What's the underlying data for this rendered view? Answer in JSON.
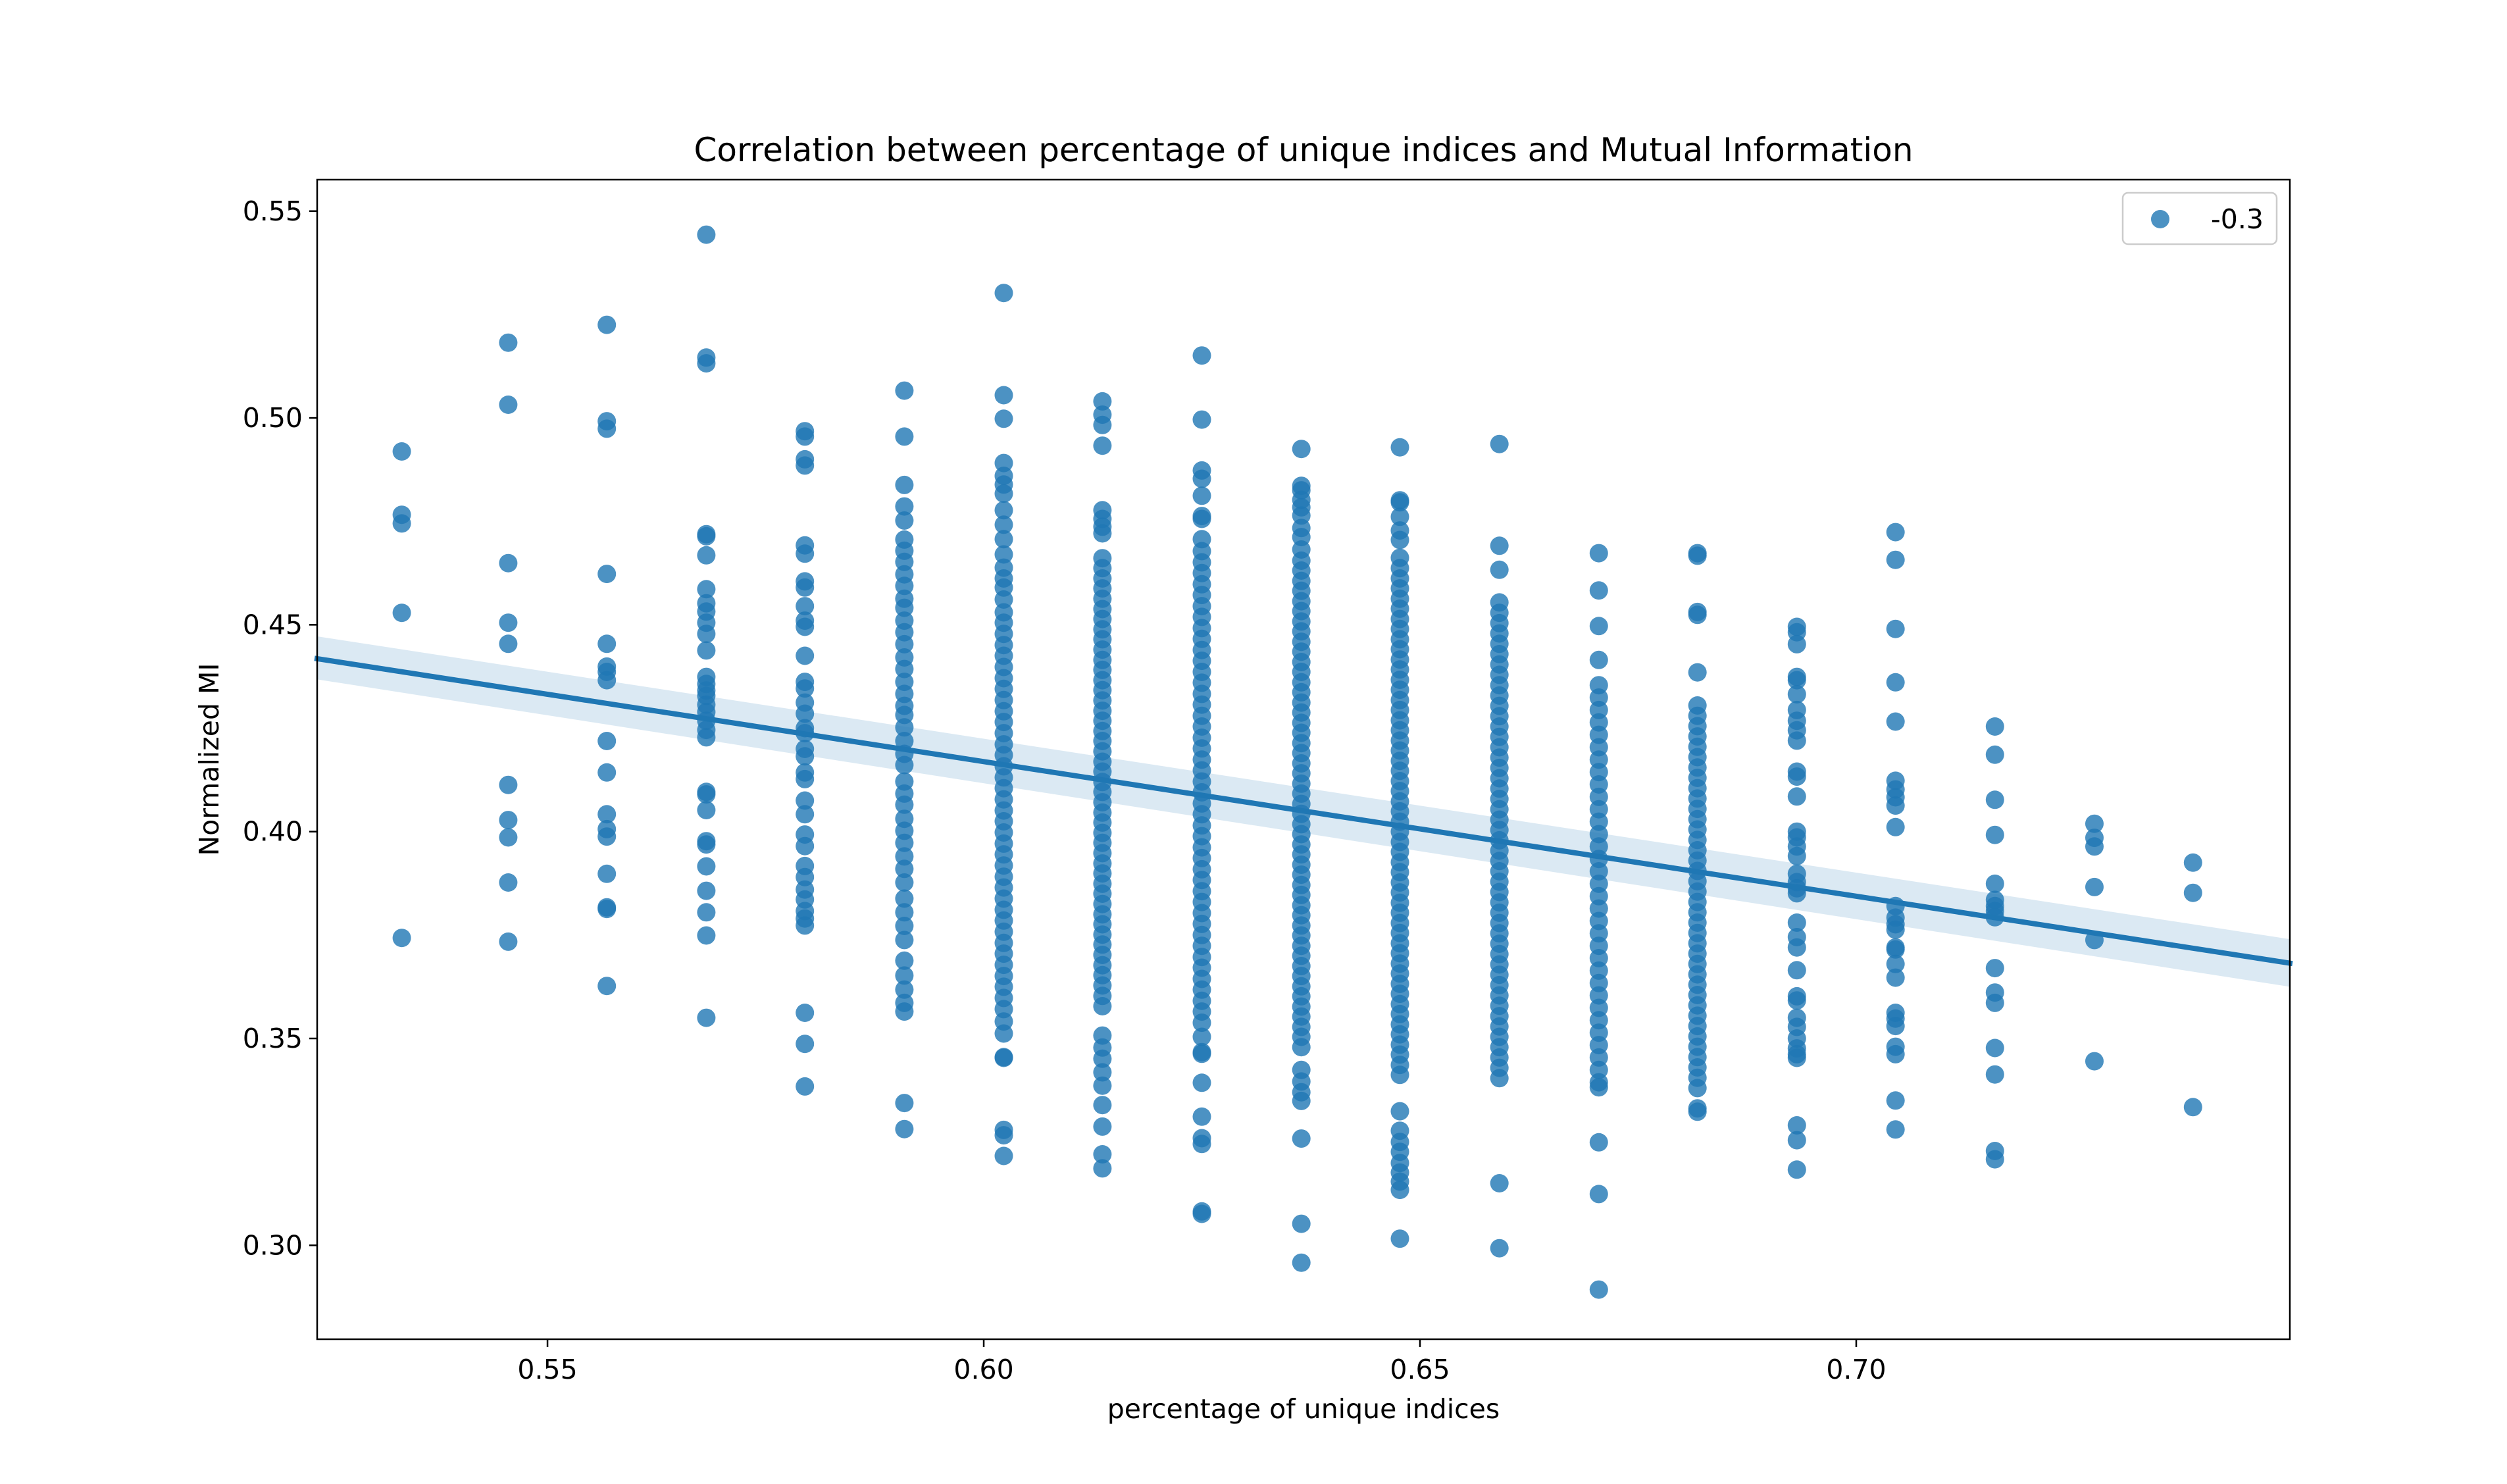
{
  "chart_data": {
    "type": "scatter",
    "title": "Correlation between percentage of unique indices and Mutual Information",
    "xlabel": "percentage of unique indices",
    "ylabel": "Normalized MI",
    "xlim": [
      0.5236,
      0.7497
    ],
    "ylim": [
      0.2773,
      0.5576
    ],
    "x_ticks": [
      "0.55",
      "0.60",
      "0.65",
      "0.70"
    ],
    "y_ticks": [
      "0.30",
      "0.35",
      "0.40",
      "0.45",
      "0.50",
      "0.55"
    ],
    "legend": {
      "label": "-0.3",
      "placement": "top-right"
    },
    "point_color": "#1f77b4",
    "regression": {
      "x": [
        0.5236,
        0.7497
      ],
      "y": [
        0.4418,
        0.3682
      ],
      "ci_upper": [
        0.4472,
        0.374
      ],
      "ci_lower": [
        0.4368,
        0.3625
      ]
    },
    "series": [
      {
        "x": 0.5333,
        "y": [
          0.4919,
          0.4766,
          0.4745,
          0.4529,
          0.3743
        ]
      },
      {
        "x": 0.5455,
        "y": [
          0.5182,
          0.5032,
          0.4649,
          0.4505,
          0.4454,
          0.4113,
          0.4028,
          0.3986,
          0.3877,
          0.3734
        ]
      },
      {
        "x": 0.5568,
        "y": [
          0.5225,
          0.4992,
          0.4974,
          0.4623,
          0.4454,
          0.4399,
          0.4386,
          0.4366,
          0.4219,
          0.4143,
          0.4042,
          0.4006,
          0.3988,
          0.3898,
          0.3817,
          0.3813,
          0.3627
        ]
      },
      {
        "x": 0.5682,
        "y": [
          0.5443,
          0.5146,
          0.5132,
          0.4719,
          0.4714,
          0.4668,
          0.4586,
          0.4552,
          0.4532,
          0.4505,
          0.4478,
          0.4438,
          0.4374,
          0.4357,
          0.4341,
          0.4328,
          0.4307,
          0.4289,
          0.4268,
          0.4246,
          0.4228,
          0.4096,
          0.409,
          0.4052,
          0.3977,
          0.3969,
          0.3916,
          0.3857,
          0.3805,
          0.3749,
          0.355
        ]
      },
      {
        "x": 0.5795,
        "y": [
          0.4968,
          0.4955,
          0.49,
          0.4885,
          0.4692,
          0.4672,
          0.4605,
          0.459,
          0.4545,
          0.451,
          0.4495,
          0.4425,
          0.4362,
          0.4346,
          0.4312,
          0.4285,
          0.425,
          0.4238,
          0.42,
          0.4182,
          0.4143,
          0.4127,
          0.4075,
          0.4042,
          0.3993,
          0.3965,
          0.3917,
          0.389,
          0.386,
          0.3836,
          0.3808,
          0.379,
          0.3773,
          0.3562,
          0.3487,
          0.3384
        ]
      },
      {
        "x": 0.5909,
        "y": [
          0.5066,
          0.4955,
          0.4838,
          0.4786,
          0.4752,
          0.4706,
          0.4679,
          0.4652,
          0.4622,
          0.4594,
          0.4563,
          0.4541,
          0.451,
          0.4482,
          0.4453,
          0.4421,
          0.4393,
          0.4362,
          0.4333,
          0.4304,
          0.4282,
          0.4252,
          0.4219,
          0.4188,
          0.4161,
          0.4121,
          0.4092,
          0.4065,
          0.4031,
          0.4002,
          0.3973,
          0.394,
          0.391,
          0.3877,
          0.3838,
          0.3805,
          0.3772,
          0.3738,
          0.3688,
          0.3652,
          0.3618,
          0.3586,
          0.3565,
          0.3344,
          0.3281
        ]
      },
      {
        "x": 0.6023,
        "y": [
          0.5302,
          0.5055,
          0.4998,
          0.4891,
          0.486,
          0.4839,
          0.4817,
          0.4777,
          0.4742,
          0.4707,
          0.467,
          0.4638,
          0.4612,
          0.459,
          0.4561,
          0.453,
          0.4505,
          0.4478,
          0.4451,
          0.4425,
          0.4398,
          0.4371,
          0.4345,
          0.4318,
          0.4291,
          0.4265,
          0.4238,
          0.4211,
          0.4185,
          0.4158,
          0.4131,
          0.4105,
          0.4078,
          0.4051,
          0.4025,
          0.3998,
          0.3971,
          0.3945,
          0.3918,
          0.3891,
          0.3865,
          0.3838,
          0.3811,
          0.3785,
          0.3758,
          0.3731,
          0.3705,
          0.3678,
          0.3651,
          0.3625,
          0.3598,
          0.3571,
          0.3541,
          0.3512,
          0.3455,
          0.3453,
          0.3279,
          0.3266,
          0.3216
        ]
      },
      {
        "x": 0.6136,
        "y": [
          0.504,
          0.5008,
          0.4983,
          0.4933,
          0.4777,
          0.4756,
          0.4737,
          0.4721,
          0.4661,
          0.4637,
          0.4612,
          0.4588,
          0.4563,
          0.4538,
          0.4514,
          0.4489,
          0.4465,
          0.444,
          0.4415,
          0.4391,
          0.4366,
          0.4342,
          0.4317,
          0.4292,
          0.4268,
          0.4243,
          0.4219,
          0.4194,
          0.4169,
          0.4145,
          0.412,
          0.4096,
          0.4071,
          0.4046,
          0.4022,
          0.3997,
          0.3973,
          0.3948,
          0.3923,
          0.3899,
          0.3874,
          0.385,
          0.3825,
          0.38,
          0.3776,
          0.3751,
          0.3727,
          0.3702,
          0.3677,
          0.3653,
          0.3628,
          0.3603,
          0.3578,
          0.3507,
          0.3478,
          0.3451,
          0.3418,
          0.3386,
          0.3339,
          0.3287,
          0.322,
          0.3186
        ]
      },
      {
        "x": 0.625,
        "y": [
          0.5151,
          0.4996,
          0.4873,
          0.4853,
          0.4812,
          0.4763,
          0.4756,
          0.4707,
          0.4678,
          0.4651,
          0.4625,
          0.4598,
          0.4572,
          0.4545,
          0.4519,
          0.4492,
          0.4466,
          0.4439,
          0.4413,
          0.4386,
          0.436,
          0.4333,
          0.4307,
          0.428,
          0.4254,
          0.4227,
          0.4201,
          0.4174,
          0.4148,
          0.4121,
          0.4095,
          0.4068,
          0.4042,
          0.4015,
          0.3989,
          0.3962,
          0.3936,
          0.3909,
          0.3883,
          0.3856,
          0.383,
          0.3803,
          0.3777,
          0.375,
          0.3724,
          0.3697,
          0.3671,
          0.3644,
          0.3618,
          0.3591,
          0.3565,
          0.3538,
          0.3504,
          0.3467,
          0.3463,
          0.3393,
          0.3311,
          0.3259,
          0.3245,
          0.3082,
          0.3076
        ]
      },
      {
        "x": 0.6364,
        "y": [
          0.4925,
          0.4836,
          0.4825,
          0.4802,
          0.4784,
          0.4764,
          0.4734,
          0.4712,
          0.4682,
          0.4655,
          0.4631,
          0.4606,
          0.4582,
          0.4557,
          0.4533,
          0.4508,
          0.4484,
          0.4459,
          0.4435,
          0.441,
          0.4386,
          0.4361,
          0.4337,
          0.4312,
          0.4288,
          0.4263,
          0.4239,
          0.4214,
          0.419,
          0.4165,
          0.4141,
          0.4116,
          0.4092,
          0.4067,
          0.4043,
          0.4018,
          0.3994,
          0.3969,
          0.3945,
          0.392,
          0.3896,
          0.3871,
          0.3847,
          0.3822,
          0.3798,
          0.3773,
          0.3749,
          0.3724,
          0.37,
          0.3675,
          0.3651,
          0.3626,
          0.3602,
          0.3577,
          0.3553,
          0.3528,
          0.3504,
          0.3479,
          0.3424,
          0.3396,
          0.337,
          0.3349,
          0.3258,
          0.3052,
          0.2958
        ]
      },
      {
        "x": 0.6477,
        "y": [
          0.4929,
          0.4801,
          0.4796,
          0.4728,
          0.4761,
          0.4705,
          0.4662,
          0.4637,
          0.4612,
          0.4588,
          0.4563,
          0.4539,
          0.4514,
          0.449,
          0.4465,
          0.4441,
          0.4416,
          0.4392,
          0.4367,
          0.4343,
          0.4318,
          0.4294,
          0.4269,
          0.4245,
          0.422,
          0.4196,
          0.4171,
          0.4147,
          0.4122,
          0.4098,
          0.4073,
          0.4049,
          0.4024,
          0.4,
          0.3975,
          0.3951,
          0.3926,
          0.3902,
          0.3877,
          0.3853,
          0.3828,
          0.3804,
          0.3779,
          0.3755,
          0.373,
          0.3706,
          0.3681,
          0.3657,
          0.3632,
          0.3608,
          0.3583,
          0.3559,
          0.3534,
          0.351,
          0.3485,
          0.3461,
          0.3436,
          0.3412,
          0.3324,
          0.3277,
          0.325,
          0.3226,
          0.3199,
          0.3176,
          0.3154,
          0.3134,
          0.3016
        ]
      },
      {
        "x": 0.6591,
        "y": [
          0.4937,
          0.4691,
          0.4633,
          0.4554,
          0.4529,
          0.4504,
          0.4479,
          0.4454,
          0.4429,
          0.4404,
          0.4379,
          0.4354,
          0.4329,
          0.4304,
          0.4279,
          0.4254,
          0.4229,
          0.4204,
          0.4179,
          0.4154,
          0.4129,
          0.4104,
          0.4079,
          0.4054,
          0.4029,
          0.4004,
          0.3979,
          0.3954,
          0.3929,
          0.3904,
          0.3879,
          0.3854,
          0.3829,
          0.3804,
          0.3779,
          0.3754,
          0.3729,
          0.3704,
          0.3679,
          0.3654,
          0.3629,
          0.3604,
          0.3579,
          0.3554,
          0.3529,
          0.3504,
          0.3479,
          0.3454,
          0.3429,
          0.3404,
          0.315,
          0.2993
        ]
      },
      {
        "x": 0.6705,
        "y": [
          0.4673,
          0.4583,
          0.4497,
          0.4415,
          0.4354,
          0.4324,
          0.4294,
          0.4264,
          0.4234,
          0.4204,
          0.4174,
          0.4144,
          0.4114,
          0.4084,
          0.4054,
          0.4024,
          0.3994,
          0.3964,
          0.3934,
          0.3904,
          0.3874,
          0.3844,
          0.3814,
          0.3784,
          0.3754,
          0.3724,
          0.3694,
          0.3664,
          0.3634,
          0.3604,
          0.3574,
          0.3544,
          0.3514,
          0.3484,
          0.3454,
          0.3424,
          0.3394,
          0.3382,
          0.3249,
          0.3124,
          0.2893
        ]
      },
      {
        "x": 0.6818,
        "y": [
          0.4673,
          0.4667,
          0.4531,
          0.4524,
          0.4385,
          0.4305,
          0.428,
          0.4255,
          0.423,
          0.4205,
          0.418,
          0.4155,
          0.413,
          0.4105,
          0.408,
          0.4055,
          0.403,
          0.4005,
          0.398,
          0.3955,
          0.393,
          0.3905,
          0.388,
          0.3855,
          0.383,
          0.3805,
          0.378,
          0.3755,
          0.373,
          0.3705,
          0.368,
          0.3655,
          0.363,
          0.3605,
          0.358,
          0.3555,
          0.353,
          0.3505,
          0.348,
          0.3455,
          0.343,
          0.3405,
          0.338,
          0.3331,
          0.3323
        ]
      },
      {
        "x": 0.6932,
        "y": [
          0.4495,
          0.4482,
          0.4453,
          0.4374,
          0.4366,
          0.4332,
          0.4294,
          0.4268,
          0.4245,
          0.422,
          0.4145,
          0.4133,
          0.4085,
          0.4,
          0.3986,
          0.3964,
          0.3941,
          0.3898,
          0.3878,
          0.3863,
          0.3851,
          0.378,
          0.3745,
          0.372,
          0.3665,
          0.3602,
          0.3592,
          0.355,
          0.3528,
          0.35,
          0.3476,
          0.3462,
          0.3453,
          0.329,
          0.3254,
          0.3183
        ]
      },
      {
        "x": 0.7045,
        "y": [
          0.4724,
          0.4657,
          0.449,
          0.4361,
          0.4266,
          0.4123,
          0.4102,
          0.4083,
          0.4063,
          0.4011,
          0.382,
          0.3792,
          0.3776,
          0.3763,
          0.372,
          0.3715,
          0.368,
          0.3647,
          0.3562,
          0.3548,
          0.353,
          0.348,
          0.3462,
          0.335,
          0.328
        ]
      },
      {
        "x": 0.7159,
        "y": [
          0.4254,
          0.4186,
          0.4077,
          0.3992,
          0.3874,
          0.3835,
          0.382,
          0.3808,
          0.3793,
          0.367,
          0.3611,
          0.3586,
          0.3477,
          0.3413,
          0.3228,
          0.3208
        ]
      },
      {
        "x": 0.7273,
        "y": [
          0.4019,
          0.3985,
          0.3964,
          0.3866,
          0.3738,
          0.3445
        ]
      },
      {
        "x": 0.7386,
        "y": [
          0.3925,
          0.3852,
          0.3334
        ]
      }
    ]
  }
}
